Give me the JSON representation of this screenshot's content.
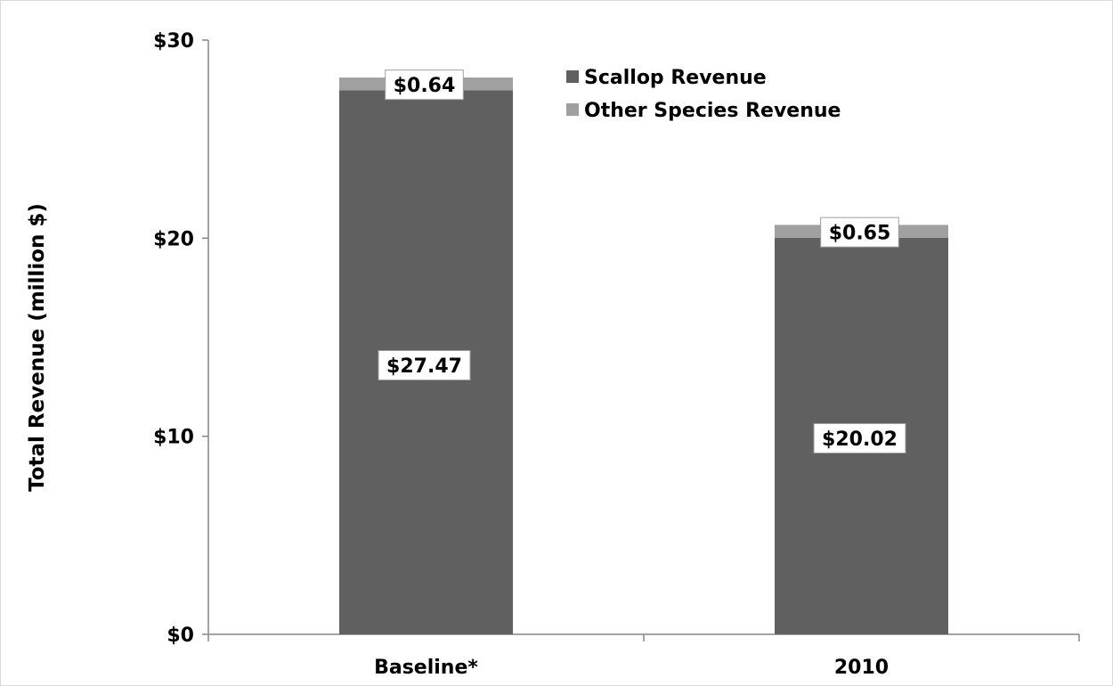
{
  "chart_data": {
    "type": "bar",
    "stacked": true,
    "categories": [
      "Baseline*",
      "2010"
    ],
    "series": [
      {
        "name": "Scallop Revenue",
        "values": [
          27.47,
          20.02
        ],
        "labels": [
          "$27.47",
          "$20.02"
        ],
        "color": "#606060"
      },
      {
        "name": "Other Species Revenue",
        "values": [
          0.64,
          0.65
        ],
        "labels": [
          "$0.64",
          "$0.65"
        ],
        "color": "#a0a0a0"
      }
    ],
    "title": "",
    "xlabel": "",
    "ylabel": "Total Revenue (million $)",
    "ylim": [
      0,
      30
    ],
    "yticks": [
      0,
      10,
      20,
      30
    ],
    "ytick_labels": [
      "$0",
      "$10",
      "$20",
      "$30"
    ],
    "grid": false,
    "legend_position": "top-right"
  }
}
